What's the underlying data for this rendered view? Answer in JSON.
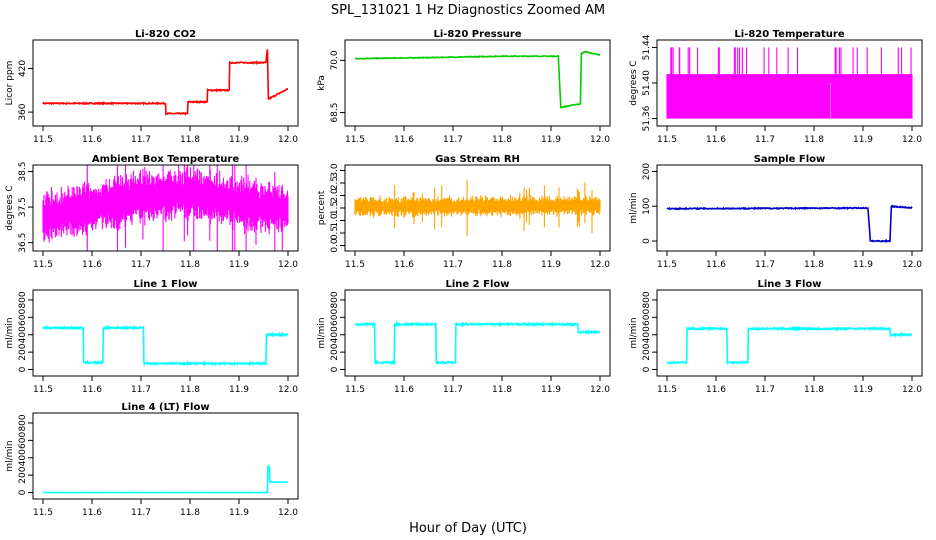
{
  "figure": {
    "title": "SPL_131021  1 Hz Diagnostics Zoomed AM",
    "xlabel": "Hour of Day (UTC)"
  },
  "chart_data": [
    {
      "type": "line",
      "title": "Li-820 CO2",
      "ylabel": "Licor ppm",
      "color": "#ff0000",
      "xlim": [
        11.5,
        12.0
      ],
      "ylim": [
        345,
        455
      ],
      "xticks": [
        "11.5",
        "11.6",
        "11.7",
        "11.8",
        "11.9",
        "12.0"
      ],
      "yticks": [
        "360",
        "420"
      ],
      "x": [
        11.5,
        11.75,
        11.751,
        11.795,
        11.796,
        11.835,
        11.836,
        11.88,
        11.881,
        11.955,
        11.958,
        11.96,
        12.0
      ],
      "y": [
        372,
        372,
        358,
        358,
        374,
        374,
        390,
        390,
        428,
        428,
        446,
        378,
        392
      ],
      "noise": 0.8
    },
    {
      "type": "line",
      "title": "Li-820 Pressure",
      "ylabel": "kPa",
      "color": "#00cc00",
      "xlim": [
        11.5,
        12.0
      ],
      "ylim": [
        68.2,
        70.5
      ],
      "xticks": [
        "11.5",
        "11.6",
        "11.7",
        "11.8",
        "11.9",
        "12.0"
      ],
      "yticks": [
        "68.5",
        "70.0"
      ],
      "x": [
        11.5,
        11.65,
        11.8,
        11.915,
        11.92,
        11.94,
        11.945,
        11.96,
        11.962,
        11.97,
        12.0
      ],
      "y": [
        70.05,
        70.08,
        70.12,
        70.12,
        68.65,
        68.7,
        68.72,
        68.75,
        70.2,
        70.25,
        70.15
      ],
      "noise": 0.01
    },
    {
      "type": "noise",
      "title": "Li-820 Temperature",
      "ylabel": "degrees C",
      "color": "#ff00ff",
      "xlim": [
        11.5,
        12.0
      ],
      "ylim": [
        51.355,
        51.445
      ],
      "xticks": [
        "11.5",
        "11.6",
        "11.7",
        "11.8",
        "11.9",
        "12.0"
      ],
      "yticks": [
        "51.36",
        "51.40",
        "51.44"
      ],
      "low": 51.36,
      "high": 51.41,
      "spike": 51.44
    },
    {
      "type": "noise",
      "title": "Ambient Box Temperature",
      "ylabel": "degrees C",
      "color": "#ff00ff",
      "xlim": [
        11.5,
        12.0
      ],
      "ylim": [
        36.35,
        38.6
      ],
      "xticks": [
        "11.5",
        "11.6",
        "11.7",
        "11.8",
        "11.9",
        "12.0"
      ],
      "yticks": [
        "36.5",
        "37.5",
        "38.5"
      ],
      "base": [
        [
          11.5,
          37.2
        ],
        [
          11.6,
          37.5
        ],
        [
          11.7,
          37.8
        ],
        [
          11.8,
          37.9
        ],
        [
          11.9,
          37.6
        ],
        [
          12.0,
          37.4
        ]
      ],
      "spread": 0.55
    },
    {
      "type": "noise",
      "title": "Gas Stream RH",
      "ylabel": "percent",
      "color": "#ffa500",
      "xlim": [
        11.5,
        12.0
      ],
      "ylim": [
        -0.1,
        3.1
      ],
      "xticks": [
        "11.5",
        "11.6",
        "11.7",
        "11.8",
        "11.9",
        "12.0"
      ],
      "yticks": [
        "0.0",
        "0.5",
        "1.0",
        "1.5",
        "2.0",
        "2.5",
        "3.0"
      ],
      "base": [
        [
          11.5,
          1.55
        ],
        [
          12.0,
          1.6
        ]
      ],
      "spread": 0.3
    },
    {
      "type": "line",
      "title": "Sample Flow",
      "ylabel": "ml/min",
      "color": "#0000cc",
      "xlim": [
        11.5,
        12.0
      ],
      "ylim": [
        -20,
        210
      ],
      "xticks": [
        "11.5",
        "11.6",
        "11.7",
        "11.8",
        "11.9",
        "12.0"
      ],
      "yticks": [
        "0",
        "100",
        "200"
      ],
      "x": [
        11.5,
        11.91,
        11.915,
        11.955,
        11.958,
        12.0
      ],
      "y": [
        93,
        95,
        0,
        0,
        100,
        95
      ],
      "noise": 1.5
    },
    {
      "type": "line",
      "title": "Line 1 Flow",
      "ylabel": "ml/min",
      "color": "#00ffff",
      "xlim": [
        11.5,
        12.0
      ],
      "ylim": [
        -40,
        880
      ],
      "xticks": [
        "11.5",
        "11.6",
        "11.7",
        "11.8",
        "11.9",
        "12.0"
      ],
      "yticks": [
        "0",
        "200",
        "400",
        "600",
        "800"
      ],
      "x": [
        11.5,
        11.582,
        11.583,
        11.622,
        11.623,
        11.705,
        11.706,
        11.955,
        11.956,
        12.0
      ],
      "y": [
        480,
        480,
        80,
        80,
        480,
        480,
        70,
        70,
        400,
        400
      ],
      "noise": 10
    },
    {
      "type": "line",
      "title": "Line 2 Flow",
      "ylabel": "ml/min",
      "color": "#00ffff",
      "xlim": [
        11.5,
        12.0
      ],
      "ylim": [
        -40,
        880
      ],
      "xticks": [
        "11.5",
        "11.6",
        "11.7",
        "11.8",
        "11.9",
        "12.0"
      ],
      "yticks": [
        "0",
        "200",
        "400",
        "600",
        "800"
      ],
      "x": [
        11.5,
        11.54,
        11.541,
        11.58,
        11.581,
        11.665,
        11.666,
        11.705,
        11.706,
        11.955,
        11.956,
        12.0
      ],
      "y": [
        520,
        520,
        80,
        80,
        520,
        520,
        80,
        80,
        520,
        520,
        430,
        430
      ],
      "noise": 10
    },
    {
      "type": "line",
      "title": "Line 3 Flow",
      "ylabel": "ml/min",
      "color": "#00ffff",
      "xlim": [
        11.5,
        12.0
      ],
      "ylim": [
        -40,
        880
      ],
      "xticks": [
        "11.5",
        "11.6",
        "11.7",
        "11.8",
        "11.9",
        "12.0"
      ],
      "yticks": [
        "0",
        "200",
        "400",
        "600",
        "800"
      ],
      "x": [
        11.5,
        11.54,
        11.541,
        11.622,
        11.623,
        11.665,
        11.666,
        11.955,
        11.956,
        12.0
      ],
      "y": [
        80,
        80,
        470,
        470,
        80,
        80,
        470,
        470,
        400,
        400
      ],
      "noise": 10
    },
    {
      "type": "line",
      "title": "Line 4 (LT) Flow",
      "ylabel": "ml/min",
      "color": "#00ffff",
      "xlim": [
        11.5,
        12.0
      ],
      "ylim": [
        -40,
        880
      ],
      "xticks": [
        "11.5",
        "11.6",
        "11.7",
        "11.8",
        "11.9",
        "12.0"
      ],
      "yticks": [
        "0",
        "200",
        "400",
        "600",
        "800"
      ],
      "x": [
        11.5,
        11.958,
        11.959,
        11.962,
        11.963,
        12.0
      ],
      "y": [
        0,
        0,
        300,
        300,
        120,
        120
      ],
      "noise": 2
    }
  ]
}
